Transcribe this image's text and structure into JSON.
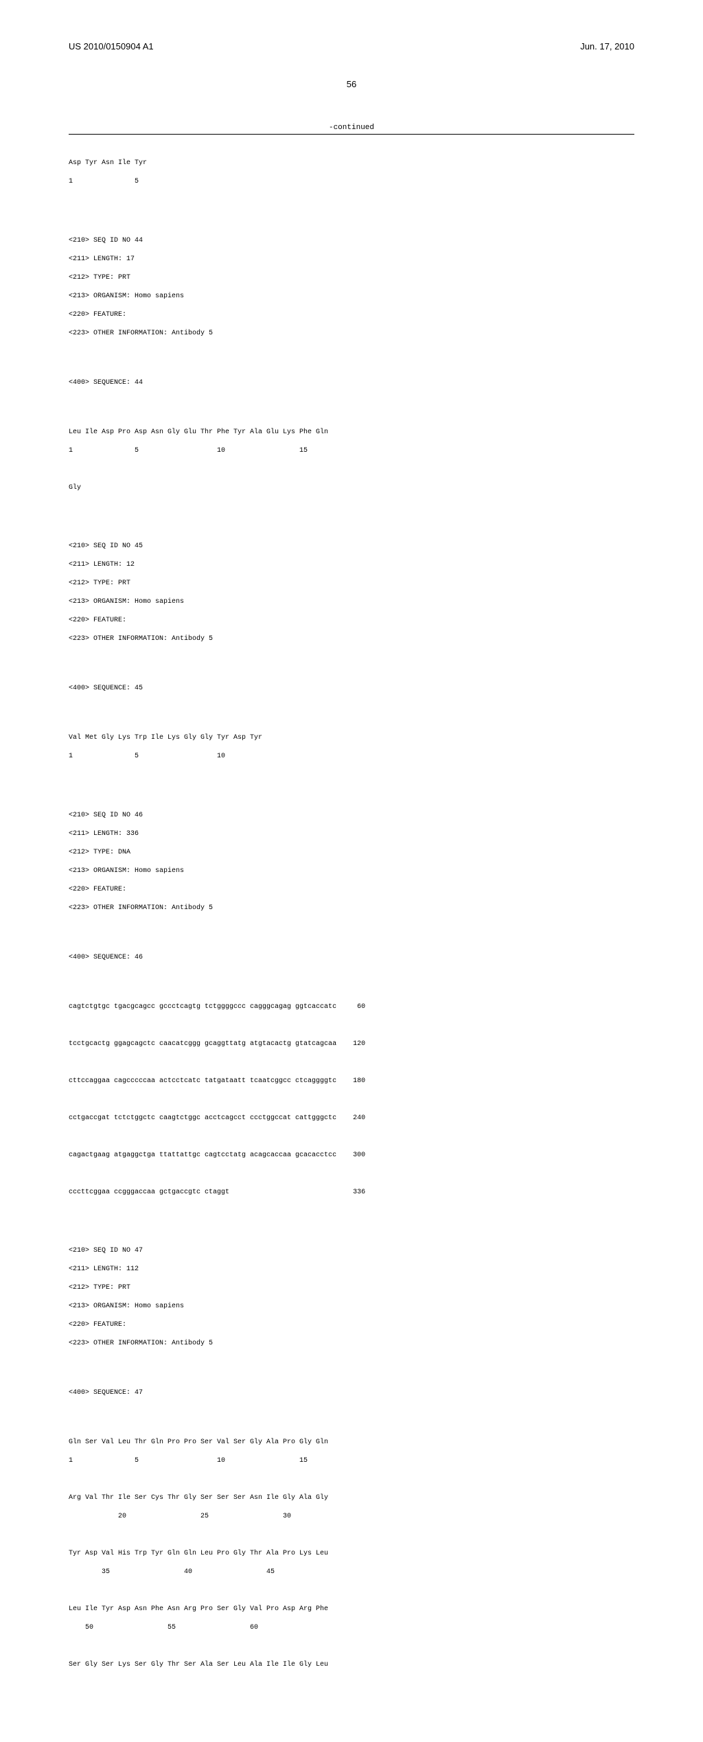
{
  "header": {
    "pub_number": "US 2010/0150904 A1",
    "pub_date": "Jun. 17, 2010"
  },
  "page_number": "56",
  "continued_label": "-continued",
  "seq43_tail": {
    "line1": "Asp Tyr Asn Ile Tyr",
    "line2": "1               5"
  },
  "seq44": {
    "h1": "<210> SEQ ID NO 44",
    "h2": "<211> LENGTH: 17",
    "h3": "<212> TYPE: PRT",
    "h4": "<213> ORGANISM: Homo sapiens",
    "h5": "<220> FEATURE:",
    "h6": "<223> OTHER INFORMATION: Antibody 5",
    "seq_label": "<400> SEQUENCE: 44",
    "line1": "Leu Ile Asp Pro Asp Asn Gly Glu Thr Phe Tyr Ala Glu Lys Phe Gln",
    "line2": "1               5                   10                  15",
    "line3": "Gly"
  },
  "seq45": {
    "h1": "<210> SEQ ID NO 45",
    "h2": "<211> LENGTH: 12",
    "h3": "<212> TYPE: PRT",
    "h4": "<213> ORGANISM: Homo sapiens",
    "h5": "<220> FEATURE:",
    "h6": "<223> OTHER INFORMATION: Antibody 5",
    "seq_label": "<400> SEQUENCE: 45",
    "line1": "Val Met Gly Lys Trp Ile Lys Gly Gly Tyr Asp Tyr",
    "line2": "1               5                   10"
  },
  "seq46": {
    "h1": "<210> SEQ ID NO 46",
    "h2": "<211> LENGTH: 336",
    "h3": "<212> TYPE: DNA",
    "h4": "<213> ORGANISM: Homo sapiens",
    "h5": "<220> FEATURE:",
    "h6": "<223> OTHER INFORMATION: Antibody 5",
    "seq_label": "<400> SEQUENCE: 46",
    "l1": "cagtctgtgc tgacgcagcc gccctcagtg tctggggccc cagggcagag ggtcaccatc     60",
    "l2": "tcctgcactg ggagcagctc caacatcggg gcaggttatg atgtacactg gtatcagcaa    120",
    "l3": "cttccaggaa cagcccccaa actcctcatc tatgataatt tcaatcggcc ctcaggggtc    180",
    "l4": "cctgaccgat tctctggctc caagtctggc acctcagcct ccctggccat cattgggctc    240",
    "l5": "cagactgaag atgaggctga ttattattgc cagtcctatg acagcaccaa gcacacctcc    300",
    "l6": "cccttcggaa ccgggaccaa gctgaccgtc ctaggt                              336"
  },
  "seq47": {
    "h1": "<210> SEQ ID NO 47",
    "h2": "<211> LENGTH: 112",
    "h3": "<212> TYPE: PRT",
    "h4": "<213> ORGANISM: Homo sapiens",
    "h5": "<220> FEATURE:",
    "h6": "<223> OTHER INFORMATION: Antibody 5",
    "seq_label": "<400> SEQUENCE: 47",
    "l1": "Gln Ser Val Leu Thr Gln Pro Pro Ser Val Ser Gly Ala Pro Gly Gln",
    "l2": "1               5                   10                  15",
    "l3": "Arg Val Thr Ile Ser Cys Thr Gly Ser Ser Ser Asn Ile Gly Ala Gly",
    "l4": "            20                  25                  30",
    "l5": "Tyr Asp Val His Trp Tyr Gln Gln Leu Pro Gly Thr Ala Pro Lys Leu",
    "l6": "        35                  40                  45",
    "l7": "Leu Ile Tyr Asp Asn Phe Asn Arg Pro Ser Gly Val Pro Asp Arg Phe",
    "l8": "    50                  55                  60",
    "l9": "Ser Gly Ser Lys Ser Gly Thr Ser Ala Ser Leu Ala Ile Ile Gly Leu"
  }
}
